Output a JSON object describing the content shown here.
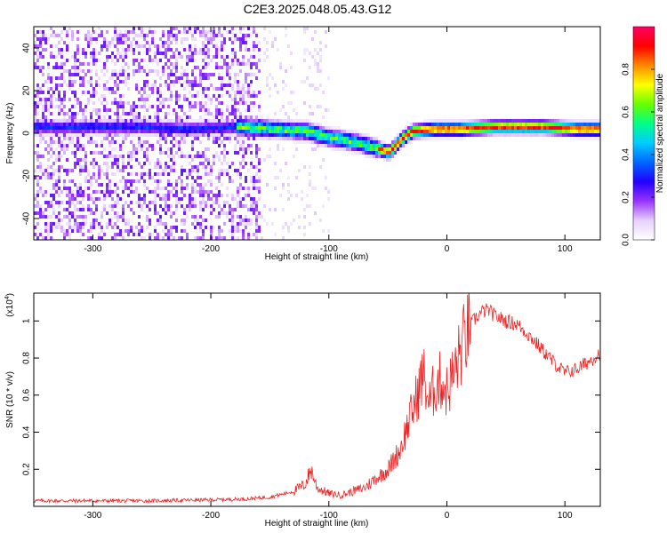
{
  "title": "C2E3.2025.048.05.43.G12",
  "chart_data": [
    {
      "type": "heatmap",
      "xlabel": "Height of straight line (km)",
      "ylabel": "Frequency (Hz)",
      "xlim": [
        -350,
        130
      ],
      "ylim": [
        -50,
        50
      ],
      "xticks": [
        -300,
        -200,
        -100,
        0,
        100
      ],
      "yticks": [
        -40,
        -20,
        0,
        20,
        40
      ],
      "colorbar": {
        "label": "Normalized spectral amplitude",
        "range": [
          0,
          1
        ],
        "ticks": [
          "0.0",
          "0.2",
          "0.4",
          "0.6",
          "0.8"
        ],
        "colors": [
          "#ffffff",
          "#e6d0ff",
          "#9933ff",
          "#2200ff",
          "#0066ff",
          "#00ccff",
          "#00ff88",
          "#66ff00",
          "#ffff00",
          "#ff8800",
          "#ff0000",
          "#ff0066"
        ]
      },
      "ridge": {
        "x": [
          -320,
          -260,
          -220,
          -180,
          -150,
          -120,
          -100,
          -80,
          -60,
          -50,
          -40,
          -30,
          -10,
          10,
          40,
          80,
          110,
          130
        ],
        "y": [
          2,
          2,
          1,
          2,
          1,
          0,
          -3,
          -5,
          -8,
          -10,
          -4,
          0,
          1,
          1,
          2,
          2,
          1,
          1
        ]
      },
      "grid": false
    },
    {
      "type": "line",
      "xlabel": "Height of straight line (km)",
      "ylabel": "SNR (10 * v/v)",
      "scale_note": "(x10",
      "scale_exp": "4",
      "xlim": [
        -350,
        130
      ],
      "ylim": [
        0,
        1.15
      ],
      "xticks": [
        -300,
        -200,
        -100,
        0,
        100
      ],
      "yticks": [
        0.2,
        0.4,
        0.6,
        0.8,
        1
      ],
      "series": [
        {
          "color": "#ee2222",
          "x": [
            -350,
            -300,
            -250,
            -200,
            -170,
            -150,
            -130,
            -120,
            -115,
            -110,
            -100,
            -90,
            -80,
            -70,
            -60,
            -50,
            -40,
            -35,
            -30,
            -25,
            -20,
            -15,
            -10,
            -5,
            0,
            5,
            10,
            15,
            20,
            25,
            30,
            35,
            40,
            50,
            60,
            70,
            80,
            90,
            100,
            110,
            120,
            130
          ],
          "y": [
            0.03,
            0.03,
            0.03,
            0.035,
            0.04,
            0.05,
            0.08,
            0.12,
            0.2,
            0.1,
            0.07,
            0.06,
            0.08,
            0.1,
            0.15,
            0.2,
            0.3,
            0.4,
            0.5,
            0.6,
            0.72,
            0.55,
            0.65,
            0.68,
            0.62,
            0.7,
            0.8,
            0.9,
            0.98,
            1.02,
            1.05,
            1.06,
            1.03,
            1.0,
            0.98,
            0.92,
            0.85,
            0.78,
            0.72,
            0.74,
            0.78,
            0.83
          ]
        }
      ],
      "grid": false
    }
  ]
}
